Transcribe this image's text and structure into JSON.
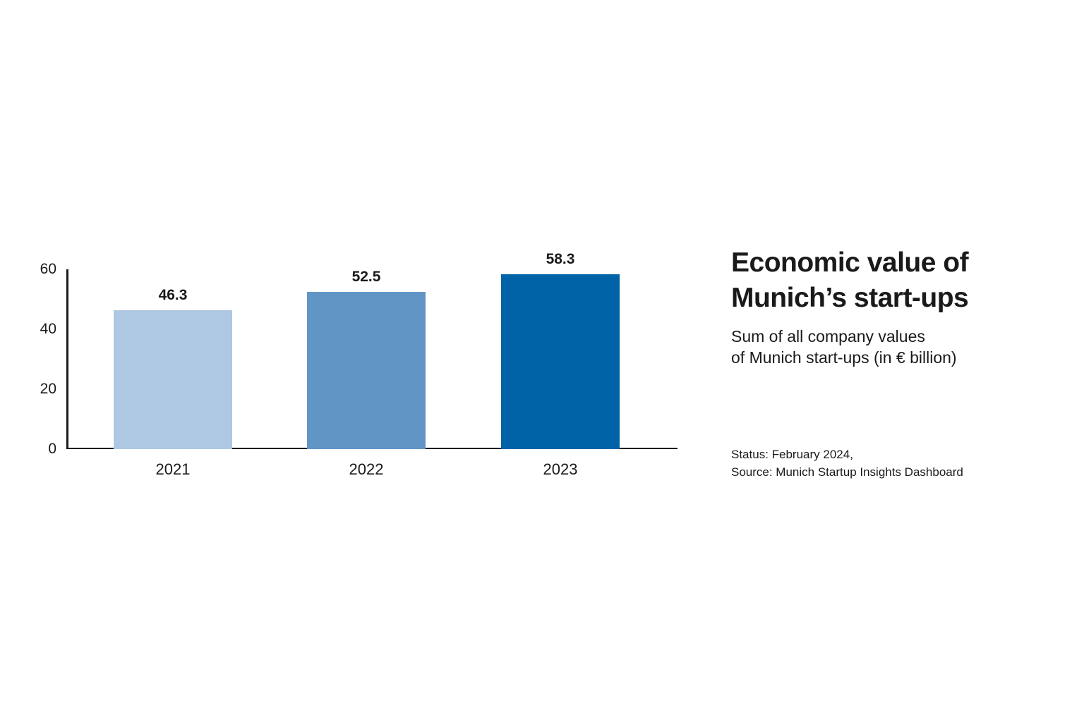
{
  "title": {
    "lines": [
      "Economic value of",
      "Munich’s start-ups"
    ]
  },
  "subtitle": {
    "lines": [
      "Sum of all company values",
      "of Munich start-ups (in € billion)"
    ]
  },
  "footnote": {
    "lines": [
      "Status: February 2024,",
      "Source: Munich Startup Insights Dashboard"
    ]
  },
  "colors": {
    "background": "#FFFFFF",
    "axis": "#1A1A1A",
    "text": "#1A1A1A",
    "bar_2021": "#AEC7E2",
    "bar_2022": "#6095C5",
    "bar_2023": "#0063A8"
  },
  "chart_data": {
    "type": "bar",
    "title": "Economic value of Munich’s start-ups",
    "subtitle": "Sum of all company values of Munich start-ups (in € billion)",
    "categories": [
      "2021",
      "2022",
      "2023"
    ],
    "values": [
      46.3,
      52.5,
      58.3
    ],
    "value_labels": [
      "46.3",
      "52.5",
      "58.3"
    ],
    "bar_colors": [
      "#AEC7E2",
      "#6095C5",
      "#0063A8"
    ],
    "xlabel": "",
    "ylabel": "",
    "ylim": [
      0,
      60
    ],
    "yticks": [
      0,
      20,
      40,
      60
    ],
    "grid": false,
    "legend": false,
    "value_labels_position": "above-bars"
  }
}
